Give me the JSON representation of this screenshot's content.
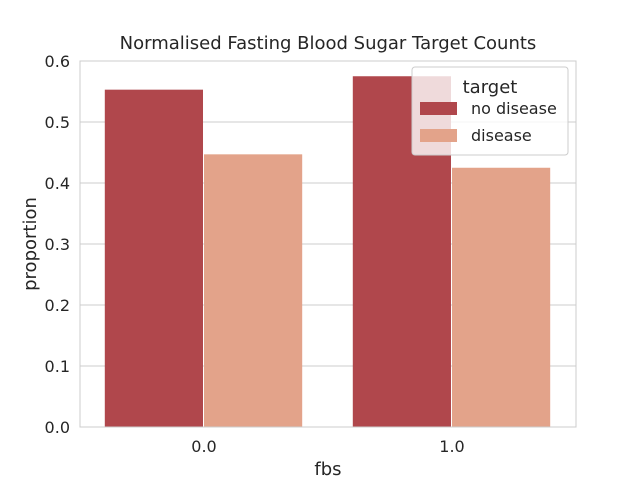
{
  "chart_data": {
    "type": "bar",
    "title": "Normalised Fasting Blood Sugar Target Counts",
    "xlabel": "fbs",
    "ylabel": "proportion",
    "categories": [
      "0.0",
      "1.0"
    ],
    "series": [
      {
        "name": "no disease",
        "values": [
          0.553,
          0.575
        ],
        "color": "#b0474c"
      },
      {
        "name": "disease",
        "values": [
          0.447,
          0.425
        ],
        "color": "#e3a38a"
      }
    ],
    "ylim": [
      0,
      0.6
    ],
    "yticks": [
      "0.0",
      "0.1",
      "0.2",
      "0.3",
      "0.4",
      "0.5",
      "0.6"
    ],
    "grid": "horizontal",
    "legend": {
      "title": "target",
      "placement": "top-right"
    },
    "colors": {
      "grid": "#cccccc",
      "axes_edge": "#cccccc"
    }
  }
}
